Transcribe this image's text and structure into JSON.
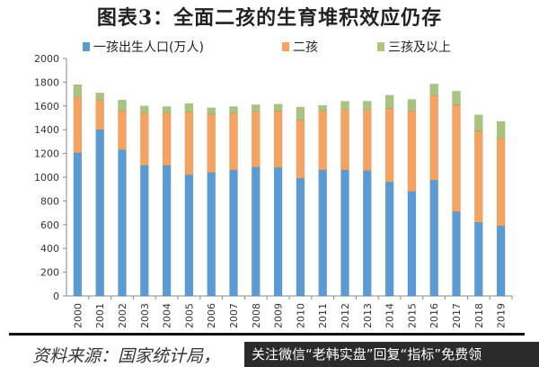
{
  "chart_data": {
    "type": "bar",
    "stacked": true,
    "title": "图表3：全面二孩的生育堆积效应仍存",
    "categories": [
      "2000",
      "2001",
      "2002",
      "2003",
      "2004",
      "2005",
      "2006",
      "2007",
      "2008",
      "2009",
      "2010",
      "2011",
      "2012",
      "2013",
      "2014",
      "2015",
      "2016",
      "2017",
      "2018",
      "2019"
    ],
    "series": [
      {
        "name": "一孩出生人口(万人)",
        "color": "#5b9bd5",
        "values": [
          1205,
          1400,
          1230,
          1100,
          1100,
          1020,
          1040,
          1060,
          1085,
          1080,
          990,
          1060,
          1060,
          1055,
          960,
          880,
          975,
          710,
          620,
          590
        ]
      },
      {
        "name": "二孩",
        "color": "#f4a460",
        "values": [
          470,
          250,
          330,
          440,
          440,
          530,
          490,
          480,
          465,
          480,
          490,
          500,
          510,
          515,
          620,
          680,
          715,
          900,
          770,
          740
        ]
      },
      {
        "name": "三孩及以上",
        "color": "#a9c47f",
        "values": [
          105,
          60,
          90,
          60,
          55,
          70,
          55,
          55,
          60,
          55,
          110,
          45,
          70,
          70,
          110,
          95,
          95,
          115,
          135,
          140
        ]
      }
    ],
    "ylim": [
      0,
      2000
    ],
    "yticks": [
      0,
      200,
      400,
      600,
      800,
      1000,
      1200,
      1400,
      1600,
      1800,
      2000
    ],
    "grid": false,
    "legend": "top"
  },
  "source": "资料来源：国家统计局，",
  "watermark": "关注微信“老韩实盘”回复“指标”免费领"
}
